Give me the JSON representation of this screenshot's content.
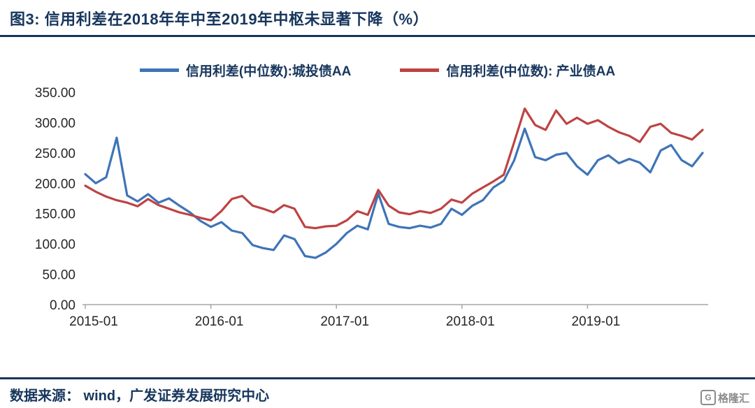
{
  "title": "图3:  信用利差在2018年年中至2019年中枢未显著下降（%）",
  "footer": {
    "source": "数据来源： wind，广发证券发展研究中心"
  },
  "logo": {
    "mark": "G",
    "text": "格隆汇"
  },
  "colors": {
    "accent_navy": "#17365D",
    "axis_gray": "#A6A6A6",
    "tick_text": "#262626"
  },
  "chart_data": {
    "type": "line",
    "title": "信用利差在2018年年中至2019年中枢未显著下降（%）",
    "xlabel": "",
    "ylabel": "",
    "ylim": [
      0,
      350
    ],
    "grid": false,
    "legend_position": "top",
    "y_ticks": [
      {
        "value": 0,
        "label": "0.00"
      },
      {
        "value": 50,
        "label": "50.00"
      },
      {
        "value": 100,
        "label": "100.00"
      },
      {
        "value": 150,
        "label": "150.00"
      },
      {
        "value": 200,
        "label": "200.00"
      },
      {
        "value": 250,
        "label": "250.00"
      },
      {
        "value": 300,
        "label": "300.00"
      },
      {
        "value": 350,
        "label": "350.00"
      }
    ],
    "x_ticks": [
      {
        "label": "2015-01",
        "index": 0
      },
      {
        "label": "2016-01",
        "index": 12
      },
      {
        "label": "2017-01",
        "index": 24
      },
      {
        "label": "2018-01",
        "index": 36
      },
      {
        "label": "2019-01",
        "index": 48
      }
    ],
    "x": [
      "2015-01",
      "2015-02",
      "2015-03",
      "2015-04",
      "2015-05",
      "2015-06",
      "2015-07",
      "2015-08",
      "2015-09",
      "2015-10",
      "2015-11",
      "2015-12",
      "2016-01",
      "2016-02",
      "2016-03",
      "2016-04",
      "2016-05",
      "2016-06",
      "2016-07",
      "2016-08",
      "2016-09",
      "2016-10",
      "2016-11",
      "2016-12",
      "2017-01",
      "2017-02",
      "2017-03",
      "2017-04",
      "2017-05",
      "2017-06",
      "2017-07",
      "2017-08",
      "2017-09",
      "2017-10",
      "2017-11",
      "2017-12",
      "2018-01",
      "2018-02",
      "2018-03",
      "2018-04",
      "2018-05",
      "2018-06",
      "2018-07",
      "2018-08",
      "2018-09",
      "2018-10",
      "2018-11",
      "2018-12",
      "2019-01",
      "2019-02",
      "2019-03",
      "2019-04",
      "2019-05",
      "2019-06",
      "2019-07",
      "2019-08",
      "2019-09",
      "2019-10",
      "2019-11",
      "2019-12"
    ],
    "series": [
      {
        "name": "信用利差(中位数):城投债AA",
        "color": "#3E74B8",
        "values": [
          215,
          200,
          210,
          275,
          180,
          170,
          182,
          168,
          175,
          163,
          152,
          138,
          128,
          136,
          122,
          118,
          98,
          93,
          90,
          114,
          108,
          80,
          77,
          86,
          100,
          118,
          130,
          124,
          183,
          133,
          128,
          126,
          130,
          127,
          133,
          158,
          148,
          163,
          172,
          193,
          204,
          238,
          290,
          243,
          238,
          247,
          250,
          228,
          214,
          238,
          246,
          233,
          240,
          234,
          218,
          254,
          263,
          238,
          228,
          250
        ]
      },
      {
        "name": "信用利差(中位数): 产业债AA",
        "color": "#BE4343",
        "values": [
          196,
          186,
          178,
          172,
          168,
          162,
          174,
          164,
          158,
          152,
          148,
          143,
          139,
          154,
          174,
          179,
          163,
          158,
          152,
          164,
          158,
          128,
          126,
          129,
          130,
          139,
          154,
          148,
          189,
          163,
          152,
          149,
          154,
          151,
          158,
          173,
          168,
          183,
          193,
          203,
          214,
          268,
          323,
          296,
          288,
          320,
          298,
          308,
          298,
          304,
          293,
          284,
          278,
          268,
          293,
          298,
          283,
          278,
          272,
          288
        ]
      }
    ]
  }
}
